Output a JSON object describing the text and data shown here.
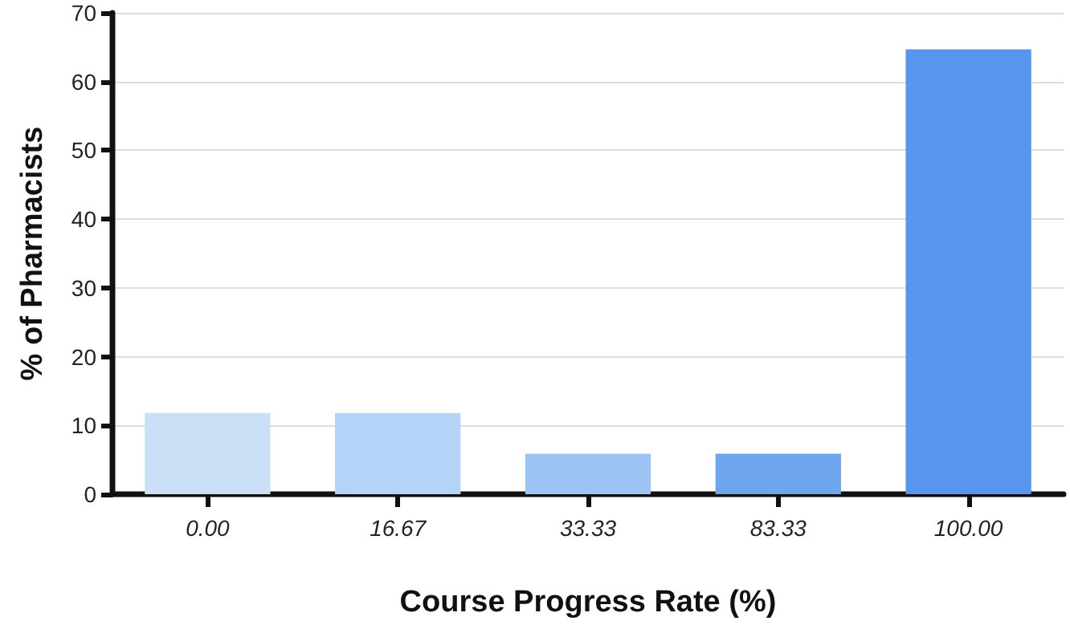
{
  "chart_data": {
    "type": "bar",
    "xlabel": "Course Progress Rate (%)",
    "ylabel": "% of Pharmacists",
    "categories": [
      "0.00",
      "16.67",
      "33.33",
      "83.33",
      "100.00"
    ],
    "values": [
      11.8,
      11.8,
      5.9,
      5.9,
      64.7
    ],
    "colors": [
      "#cbe0f7",
      "#b3d4f7",
      "#9bc3f4",
      "#6ea5ef",
      "#5895ef"
    ],
    "ylim": [
      0,
      70
    ],
    "yticks": [
      0,
      10,
      20,
      30,
      40,
      50,
      60,
      70
    ],
    "grid": "y"
  }
}
